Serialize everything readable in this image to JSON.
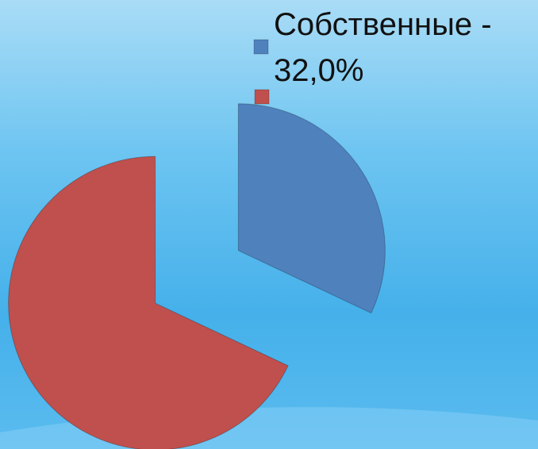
{
  "chart_data": {
    "type": "pie",
    "categories": [
      "Собственные - 32,0%",
      null
    ],
    "values": [
      32,
      68
    ],
    "colors": [
      "#4f81bd",
      "#c0504d"
    ],
    "legend": "top-right"
  }
}
